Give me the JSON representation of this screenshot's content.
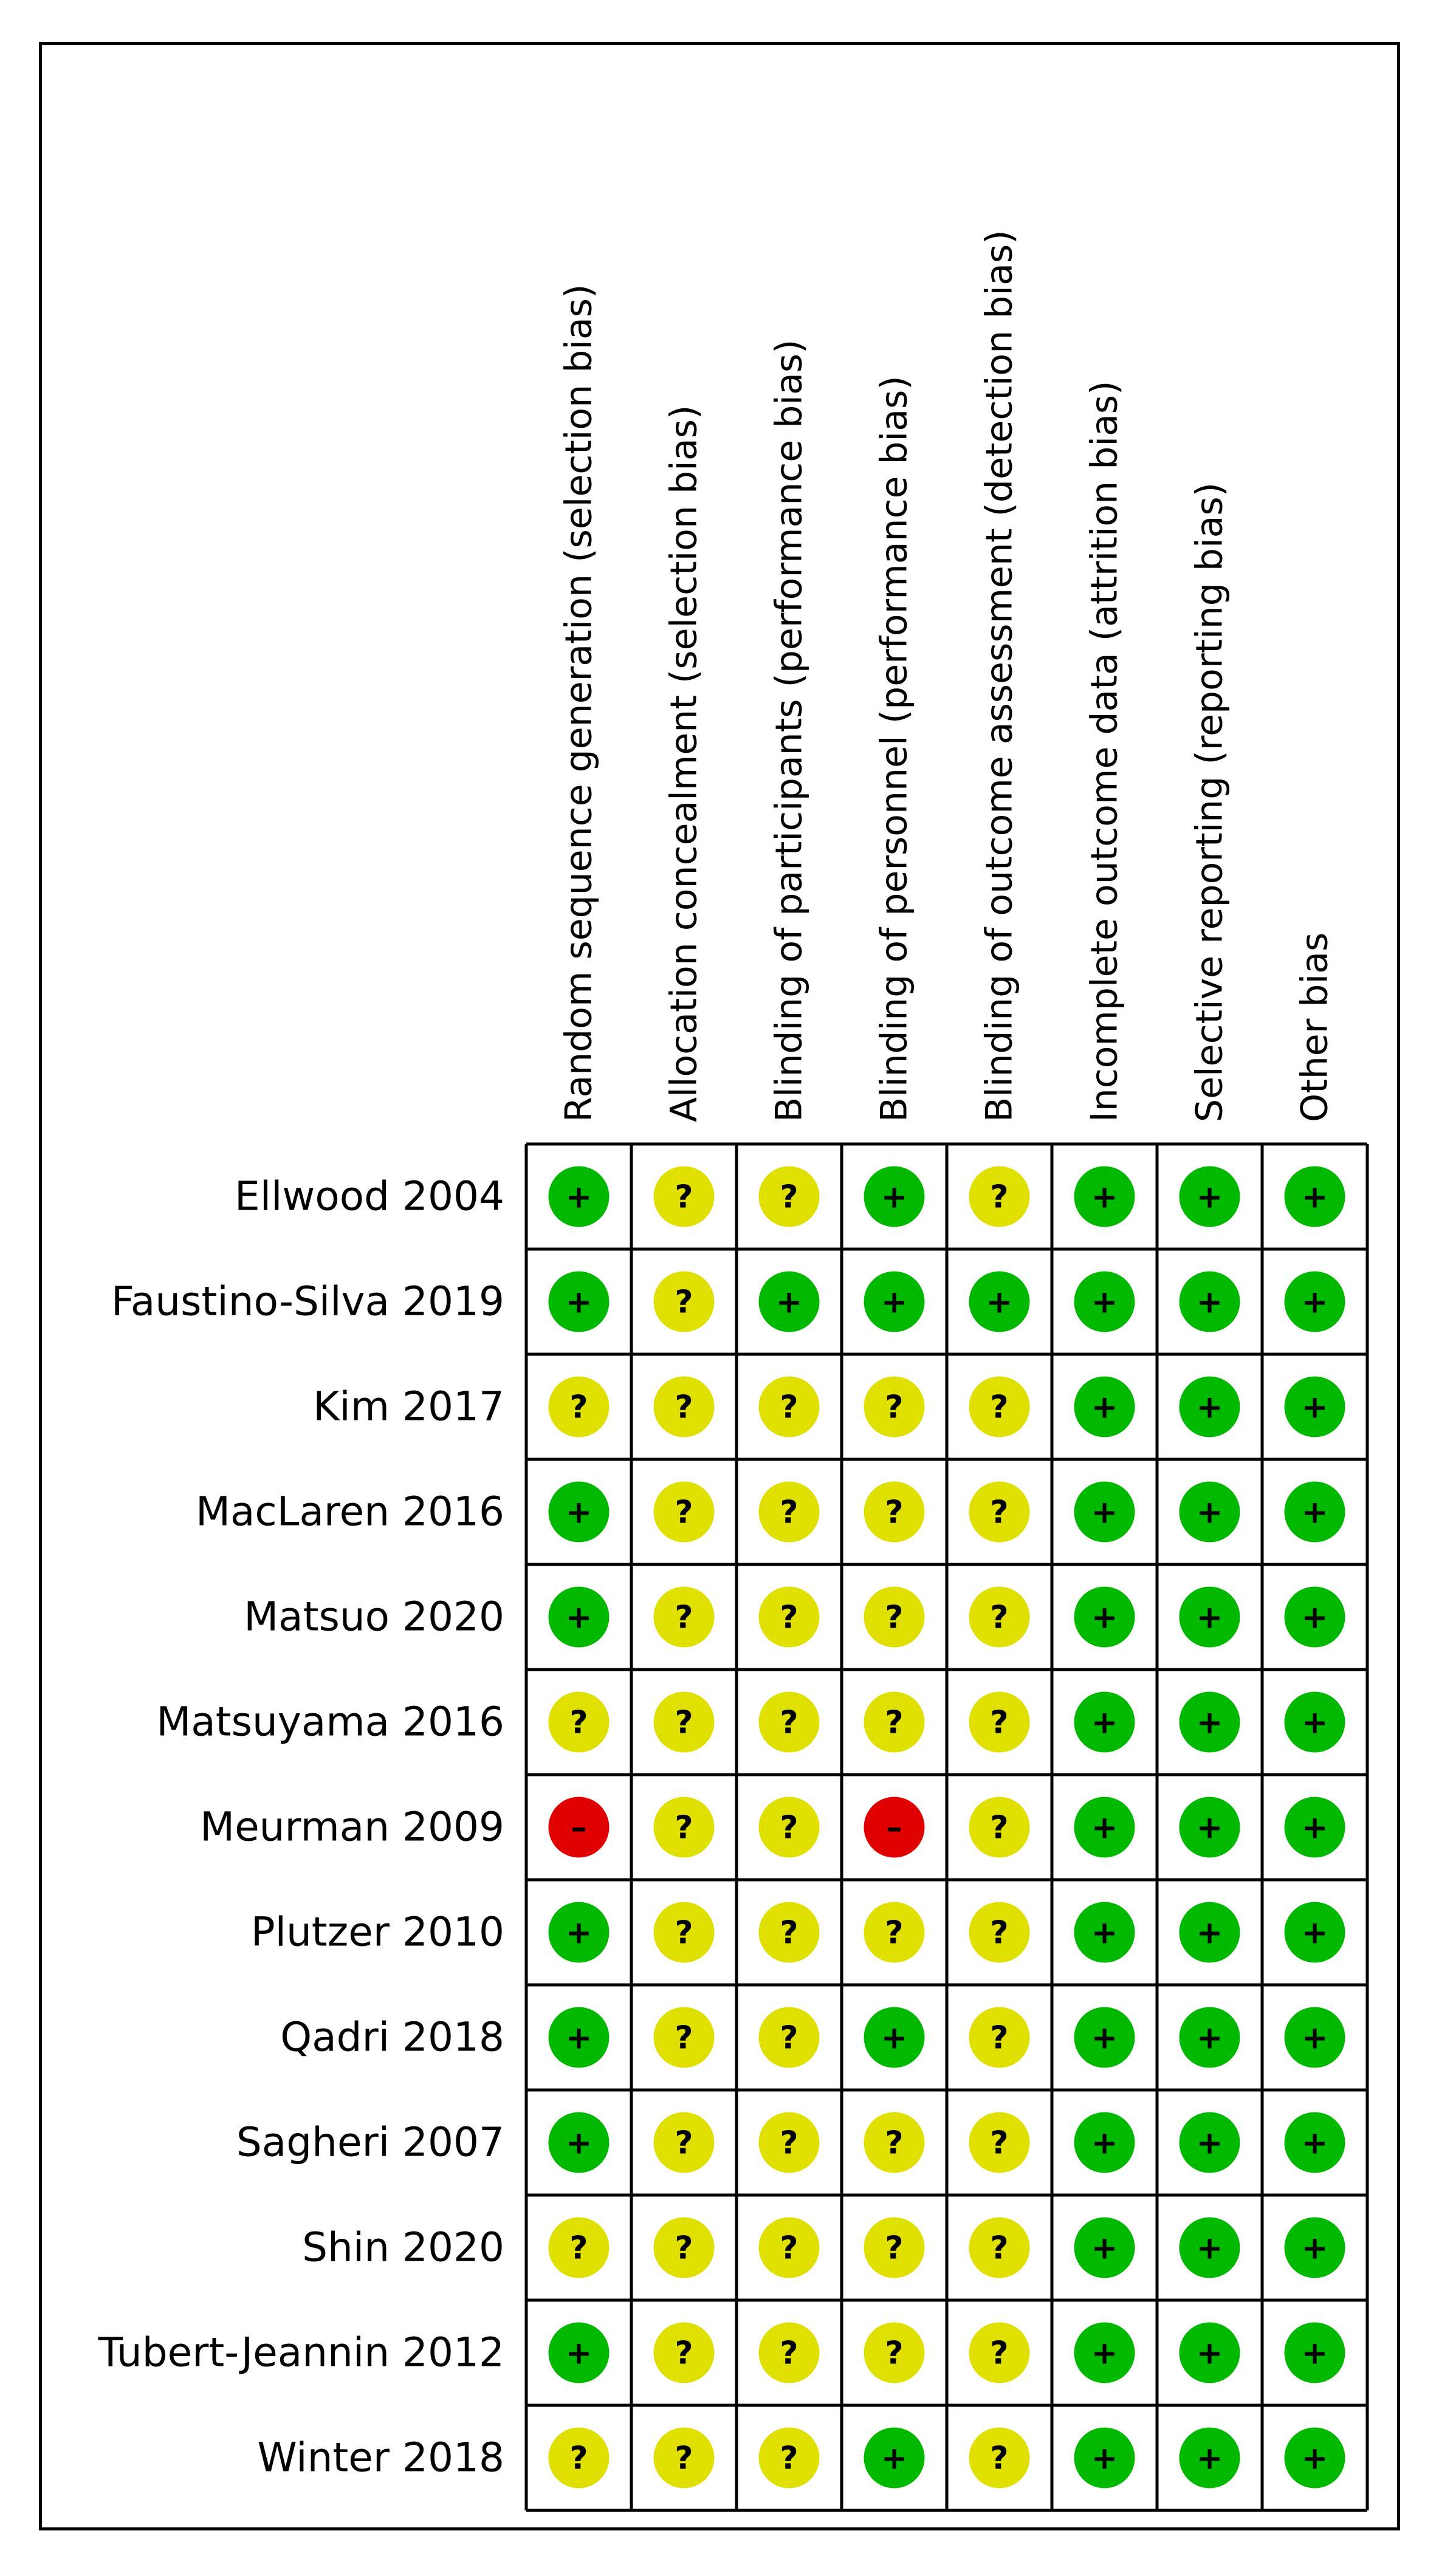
{
  "chart_data": {
    "type": "table",
    "columns": [
      "Random sequence generation (selection bias)",
      "Allocation concealment (selection bias)",
      "Blinding of participants (performance bias)",
      "Blinding of personnel (performance bias)",
      "Blinding of outcome assessment (detection bias)",
      "Incomplete outcome data (attrition bias)",
      "Selective reporting (reporting bias)",
      "Other bias"
    ],
    "rows": [
      {
        "study": "Ellwood 2004",
        "ratings": [
          "+",
          "?",
          "?",
          "+",
          "?",
          "+",
          "+",
          "+"
        ]
      },
      {
        "study": "Faustino-Silva 2019",
        "ratings": [
          "+",
          "?",
          "+",
          "+",
          "+",
          "+",
          "+",
          "+"
        ]
      },
      {
        "study": "Kim 2017",
        "ratings": [
          "?",
          "?",
          "?",
          "?",
          "?",
          "+",
          "+",
          "+"
        ]
      },
      {
        "study": "MacLaren 2016",
        "ratings": [
          "+",
          "?",
          "?",
          "?",
          "?",
          "+",
          "+",
          "+"
        ]
      },
      {
        "study": "Matsuo 2020",
        "ratings": [
          "+",
          "?",
          "?",
          "?",
          "?",
          "+",
          "+",
          "+"
        ]
      },
      {
        "study": "Matsuyama 2016",
        "ratings": [
          "?",
          "?",
          "?",
          "?",
          "?",
          "+",
          "+",
          "+"
        ]
      },
      {
        "study": "Meurman 2009",
        "ratings": [
          "-",
          "?",
          "?",
          "-",
          "?",
          "+",
          "+",
          "+"
        ]
      },
      {
        "study": "Plutzer 2010",
        "ratings": [
          "+",
          "?",
          "?",
          "?",
          "?",
          "+",
          "+",
          "+"
        ]
      },
      {
        "study": "Qadri 2018",
        "ratings": [
          "+",
          "?",
          "?",
          "+",
          "?",
          "+",
          "+",
          "+"
        ]
      },
      {
        "study": "Sagheri 2007",
        "ratings": [
          "+",
          "?",
          "?",
          "?",
          "?",
          "+",
          "+",
          "+"
        ]
      },
      {
        "study": "Shin 2020",
        "ratings": [
          "?",
          "?",
          "?",
          "?",
          "?",
          "+",
          "+",
          "+"
        ]
      },
      {
        "study": "Tubert-Jeannin 2012",
        "ratings": [
          "+",
          "?",
          "?",
          "?",
          "?",
          "+",
          "+",
          "+"
        ]
      },
      {
        "study": "Winter 2018",
        "ratings": [
          "?",
          "?",
          "?",
          "+",
          "?",
          "+",
          "+",
          "+"
        ]
      }
    ],
    "symbols": {
      "+": "+",
      "?": "?",
      "-": "–"
    },
    "colors": {
      "+": "#00b800",
      "?": "#e0e000",
      "-": "#e00000"
    }
  }
}
